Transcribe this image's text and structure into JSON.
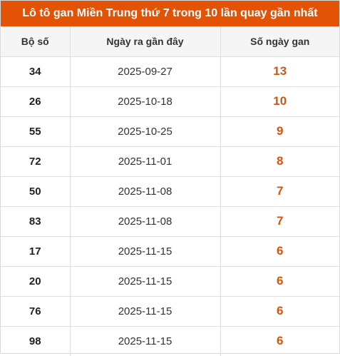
{
  "title": "Lô tô gan Miền Trung thứ 7 trong 10 lần quay gần nhất",
  "headers": [
    "Bộ số",
    "Ngày ra gần đây",
    "Số ngày gan"
  ],
  "rows": [
    {
      "number": "34",
      "date": "2025-09-27",
      "gap": "13"
    },
    {
      "number": "26",
      "date": "2025-10-18",
      "gap": "10"
    },
    {
      "number": "55",
      "date": "2025-10-25",
      "gap": "9"
    },
    {
      "number": "72",
      "date": "2025-11-01",
      "gap": "8"
    },
    {
      "number": "50",
      "date": "2025-11-08",
      "gap": "7"
    },
    {
      "number": "83",
      "date": "2025-11-08",
      "gap": "7"
    },
    {
      "number": "17",
      "date": "2025-11-15",
      "gap": "6"
    },
    {
      "number": "20",
      "date": "2025-11-15",
      "gap": "6"
    },
    {
      "number": "76",
      "date": "2025-11-15",
      "gap": "6"
    },
    {
      "number": "98",
      "date": "2025-11-15",
      "gap": "6"
    }
  ],
  "colors": {
    "title_bg": "#e35205",
    "gap_text": "#d9530a",
    "header_bg": "#f5f5f5"
  }
}
